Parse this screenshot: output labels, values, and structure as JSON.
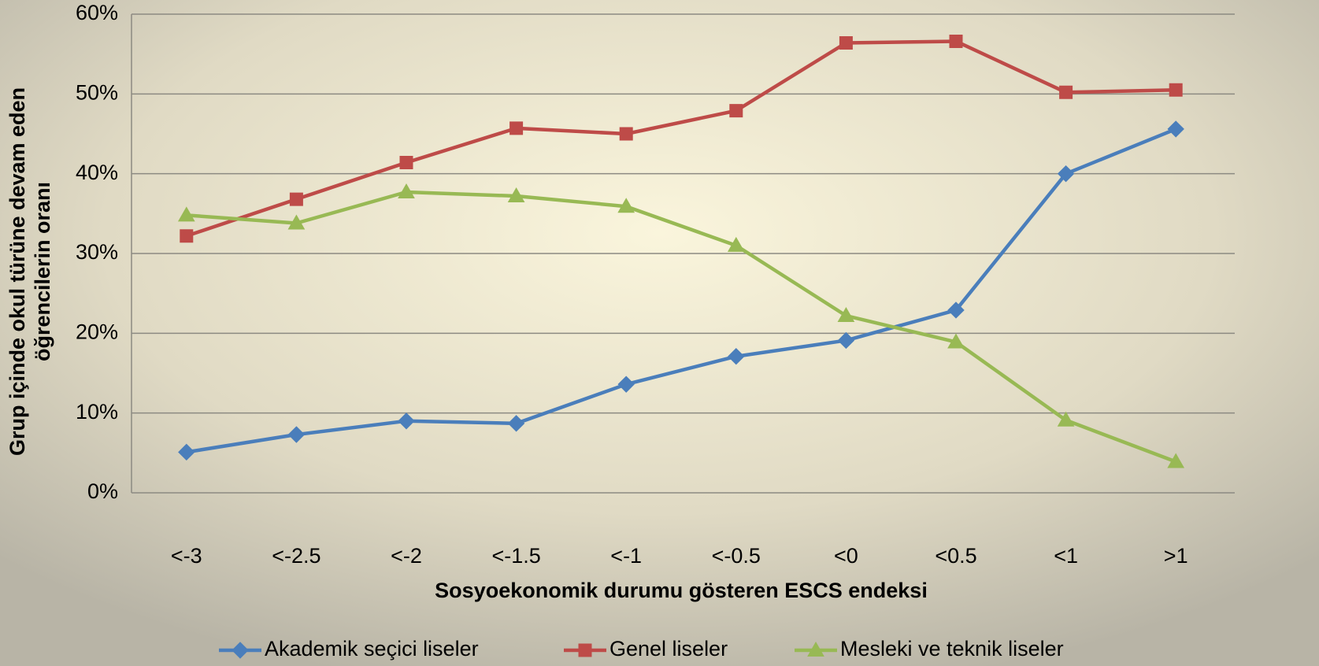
{
  "chart_data": {
    "type": "line",
    "ylabel": [
      "Grup içinde okul türüne devam eden",
      "öğrencilerin oranı"
    ],
    "xlabel": "Sosyoekonomik durumu gösteren ESCS endeksi",
    "categories": [
      "<-3",
      "<-2.5",
      "<-2",
      "<-1.5",
      "<-1",
      "<-0.5",
      "<0",
      "<0.5",
      "<1",
      ">1"
    ],
    "series": [
      {
        "name": "Akademik seçici liseler",
        "color": "#4a7ebb",
        "marker": "diamond",
        "values": [
          5.1,
          7.3,
          9.0,
          8.7,
          13.6,
          17.1,
          19.1,
          22.9,
          40.0,
          45.6
        ]
      },
      {
        "name": "Genel liseler",
        "color": "#be4b48",
        "marker": "square",
        "values": [
          32.2,
          36.8,
          41.4,
          45.7,
          45.0,
          47.9,
          56.4,
          56.6,
          50.2,
          50.5
        ]
      },
      {
        "name": "Mesleki ve teknik liseler",
        "color": "#98b954",
        "marker": "triangle",
        "values": [
          34.8,
          33.8,
          37.7,
          37.2,
          35.9,
          31.0,
          22.2,
          18.9,
          9.1,
          3.9
        ]
      }
    ],
    "ylim": [
      0,
      60
    ],
    "yticks": [
      {
        "value": 0,
        "label": "0%"
      },
      {
        "value": 10,
        "label": "10%"
      },
      {
        "value": 20,
        "label": "20%"
      },
      {
        "value": 30,
        "label": "30%"
      },
      {
        "value": 40,
        "label": "40%"
      },
      {
        "value": 50,
        "label": "50%"
      },
      {
        "value": 60,
        "label": "60%"
      }
    ],
    "grid": true,
    "legend": "bottom"
  }
}
